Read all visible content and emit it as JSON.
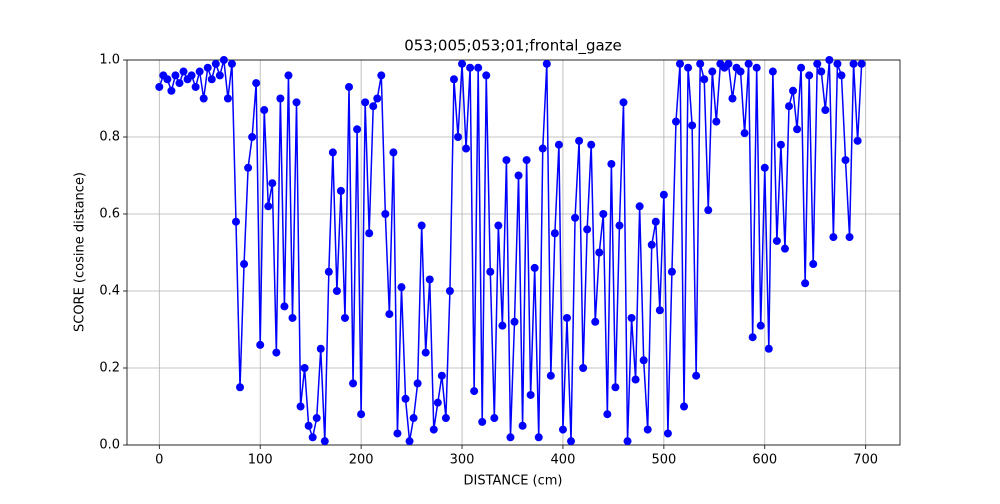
{
  "chart_data": {
    "type": "line",
    "title": "053;005;053;01;frontal_gaze",
    "x_label": "DISTANCE (cm)",
    "y_label": "SCORE (cosine distance)",
    "x": [
      0,
      4,
      8,
      12,
      16,
      20,
      24,
      28,
      32,
      36,
      40,
      44,
      48,
      52,
      56,
      60,
      64,
      68,
      72,
      76,
      80,
      84,
      88,
      92,
      96,
      100,
      104,
      108,
      112,
      116,
      120,
      124,
      128,
      132,
      136,
      140,
      144,
      148,
      152,
      156,
      160,
      164,
      168,
      172,
      176,
      180,
      184,
      188,
      192,
      196,
      200,
      204,
      208,
      212,
      216,
      220,
      224,
      228,
      232,
      236,
      240,
      244,
      248,
      252,
      256,
      260,
      264,
      268,
      272,
      276,
      280,
      284,
      288,
      292,
      296,
      300,
      304,
      308,
      312,
      316,
      320,
      324,
      328,
      332,
      336,
      340,
      344,
      348,
      352,
      356,
      360,
      364,
      368,
      372,
      376,
      380,
      384,
      388,
      392,
      396,
      400,
      404,
      408,
      412,
      416,
      420,
      424,
      428,
      432,
      436,
      440,
      444,
      448,
      452,
      456,
      460,
      464,
      468,
      472,
      476,
      480,
      484,
      488,
      492,
      496,
      500,
      504,
      508,
      512,
      516,
      520,
      524,
      528,
      532,
      536,
      540,
      544,
      548,
      552,
      556,
      560,
      564,
      568,
      572,
      576,
      580,
      584,
      588,
      592,
      596,
      600,
      604,
      608,
      612,
      616,
      620,
      624,
      628,
      632,
      636,
      640,
      644,
      648,
      652,
      656,
      660,
      664,
      668,
      672,
      676,
      680,
      684,
      688,
      692,
      696
    ],
    "series": [
      {
        "color": "#0000ff",
        "values": [
          0.93,
          0.96,
          0.95,
          0.92,
          0.96,
          0.94,
          0.97,
          0.95,
          0.96,
          0.93,
          0.97,
          0.9,
          0.98,
          0.95,
          0.99,
          0.96,
          1.0,
          0.9,
          0.99,
          0.58,
          0.15,
          0.47,
          0.72,
          0.8,
          0.94,
          0.26,
          0.87,
          0.62,
          0.68,
          0.24,
          0.9,
          0.36,
          0.96,
          0.33,
          0.89,
          0.1,
          0.2,
          0.05,
          0.02,
          0.07,
          0.25,
          0.01,
          0.45,
          0.76,
          0.4,
          0.66,
          0.33,
          0.93,
          0.16,
          0.82,
          0.08,
          0.89,
          0.55,
          0.88,
          0.9,
          0.96,
          0.6,
          0.34,
          0.76,
          0.03,
          0.41,
          0.12,
          0.01,
          0.07,
          0.16,
          0.57,
          0.24,
          0.43,
          0.04,
          0.11,
          0.18,
          0.07,
          0.4,
          0.95,
          0.8,
          0.99,
          0.77,
          0.98,
          0.14,
          0.98,
          0.06,
          0.96,
          0.45,
          0.07,
          0.57,
          0.31,
          0.74,
          0.02,
          0.32,
          0.7,
          0.05,
          0.74,
          0.13,
          0.46,
          0.02,
          0.77,
          0.99,
          0.18,
          0.55,
          0.78,
          0.04,
          0.33,
          0.01,
          0.59,
          0.79,
          0.2,
          0.56,
          0.78,
          0.32,
          0.5,
          0.6,
          0.08,
          0.73,
          0.15,
          0.57,
          0.89,
          0.01,
          0.33,
          0.17,
          0.62,
          0.22,
          0.04,
          0.52,
          0.58,
          0.35,
          0.65,
          0.03,
          0.45,
          0.84,
          0.99,
          0.1,
          0.98,
          0.83,
          0.18,
          0.99,
          0.95,
          0.61,
          0.97,
          0.84,
          0.99,
          0.98,
          0.99,
          0.9,
          0.98,
          0.97,
          0.81,
          0.99,
          0.28,
          0.98,
          0.31,
          0.72,
          0.25,
          0.97,
          0.53,
          0.78,
          0.51,
          0.88,
          0.92,
          0.82,
          0.98,
          0.42,
          0.96,
          0.47,
          0.99,
          0.97,
          0.87,
          1.0,
          0.54,
          0.99,
          0.96,
          0.74,
          0.54,
          0.99,
          0.79,
          0.99
        ]
      }
    ],
    "xlim": [
      -32,
      734
    ],
    "ylim": [
      0,
      1
    ],
    "xticks": [
      0,
      100,
      200,
      300,
      400,
      500,
      600,
      700
    ],
    "yticks": [
      {
        "value": 0,
        "label": "0.0"
      },
      {
        "value": 0.2,
        "label": "0.2"
      },
      {
        "value": 0.4,
        "label": "0.4"
      },
      {
        "value": 0.6,
        "label": "0.6"
      },
      {
        "value": 0.8,
        "label": "0.8"
      },
      {
        "value": 1,
        "label": "1.0"
      }
    ],
    "grid": true
  }
}
